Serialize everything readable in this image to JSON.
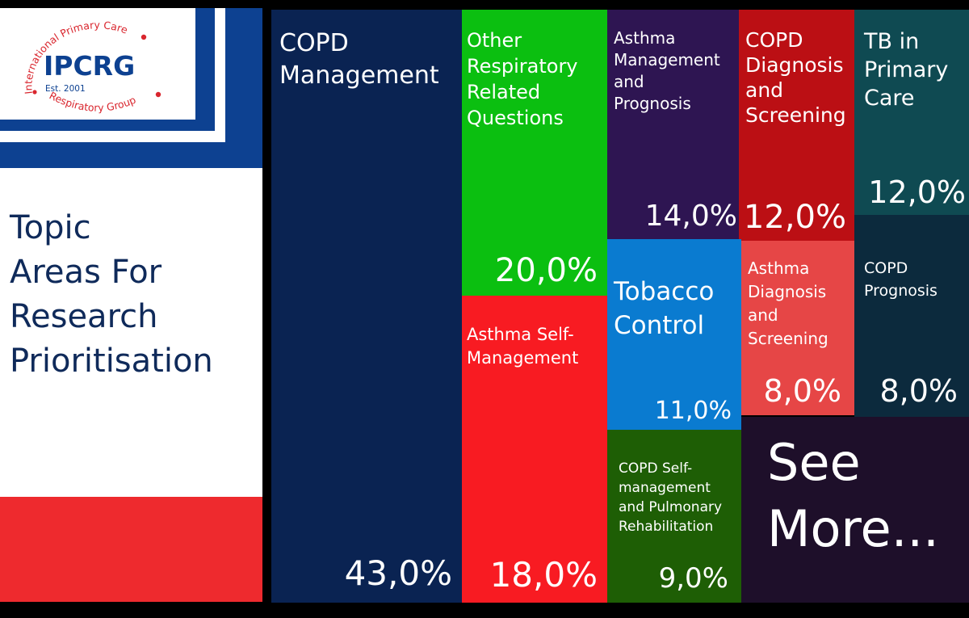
{
  "logo": {
    "arc_top": "International Primary Care",
    "acronym": "IPCRG",
    "established": "Est. 2001",
    "arc_bottom": "Respiratory Group"
  },
  "sidebar": {
    "title": "Topic\nAreas For\nResearch\nPrioritisation"
  },
  "see_more_label": "See\nMore...",
  "chart_data": {
    "type": "treemap",
    "title": "Topic Areas For Research Prioritisation",
    "items": [
      {
        "label": "COPD Management",
        "value": 43.0,
        "display": "43,0%",
        "color": "#0a2352"
      },
      {
        "label": "Other Respiratory Related Questions",
        "value": 20.0,
        "display": "20,0%",
        "color": "#0bbf10"
      },
      {
        "label": "Asthma Self-Management",
        "value": 18.0,
        "display": "18,0%",
        "color": "#f81b22"
      },
      {
        "label": "Asthma Management and Prognosis",
        "value": 14.0,
        "display": "14,0%",
        "color": "#2e1552"
      },
      {
        "label": "COPD Diagnosis and Screening",
        "value": 12.0,
        "display": "12,0%",
        "color": "#bb0f14"
      },
      {
        "label": "TB in Primary Care",
        "value": 12.0,
        "display": "12,0%",
        "color": "#0f4a52"
      },
      {
        "label": "Tobacco Control",
        "value": 11.0,
        "display": "11,0%",
        "color": "#0a7bd0"
      },
      {
        "label": "COPD Self-management and Pulmonary Rehabilitation",
        "value": 9.0,
        "display": "9,0%",
        "color": "#1e5e05"
      },
      {
        "label": "Asthma Diagnosis and Screening",
        "value": 8.0,
        "display": "8,0%",
        "color": "#e64646"
      },
      {
        "label": "COPD Prognosis",
        "value": 8.0,
        "display": "8,0%",
        "color": "#0c2a3d"
      }
    ]
  }
}
